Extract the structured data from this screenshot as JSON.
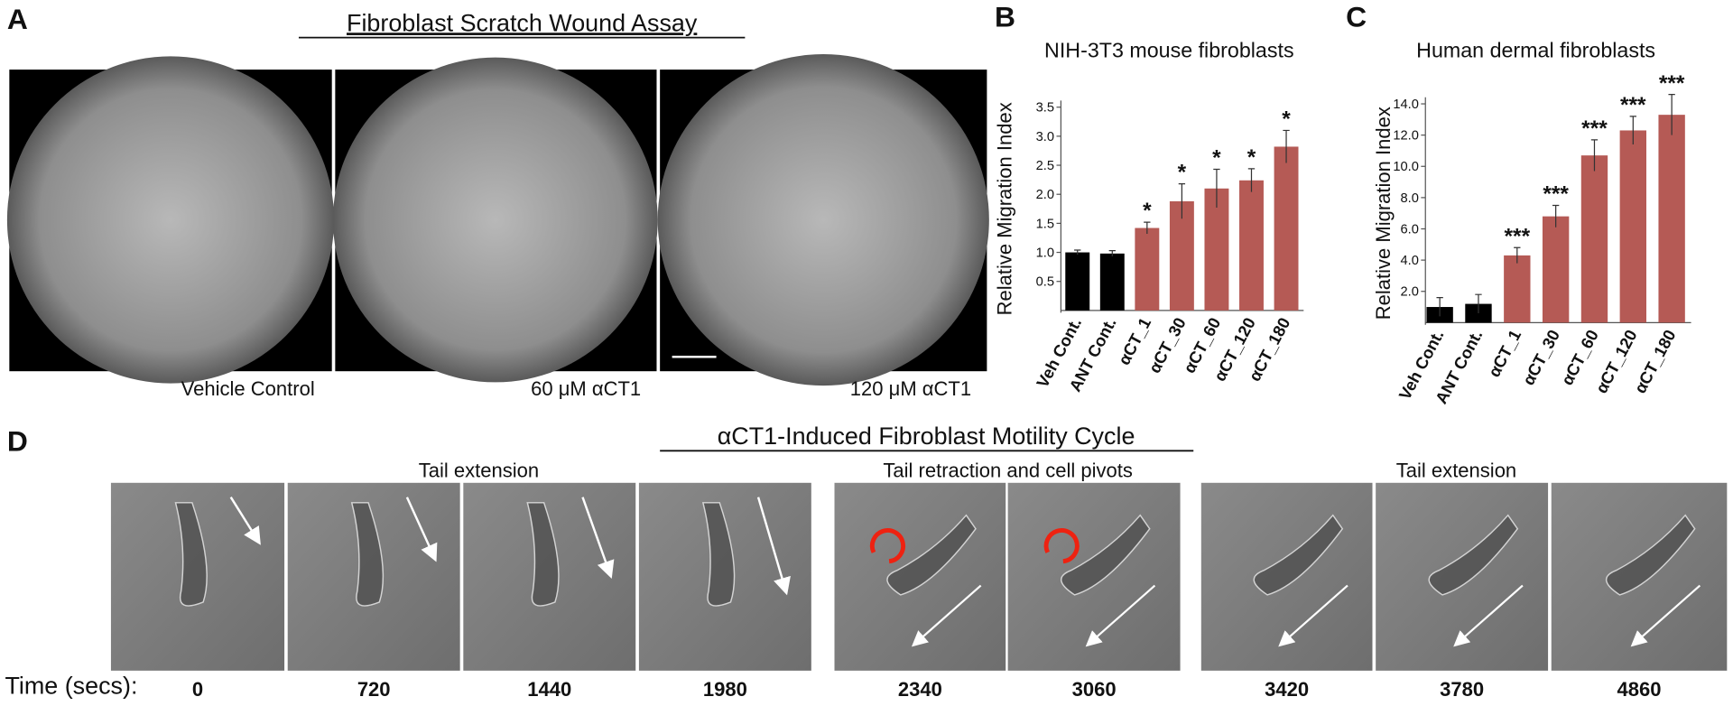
{
  "panel_A": {
    "letter": "A",
    "title": "Fibroblast Scratch Wound Assay",
    "captions": [
      "Vehicle Control",
      "60 μM αCT1",
      "120 μM αCT1"
    ]
  },
  "panel_D": {
    "letter": "D",
    "title": "αCT1-Induced Fibroblast Motility Cycle",
    "phases": [
      "Tail extension",
      "Tail retraction and cell pivots",
      "Tail extension"
    ],
    "time_label": "Time (secs):",
    "times": [
      0,
      720,
      1440,
      1980,
      2340,
      3060,
      3420,
      3780,
      4860
    ]
  },
  "chart_data": [
    {
      "type": "bar",
      "panel_label": "B",
      "title": "NIH-3T3 mouse fibroblasts",
      "y_label": "Relative Migration Index",
      "categories": [
        "Veh Cont.",
        "ANT Cont.",
        "αCT_1",
        "αCT_30",
        "αCT_60",
        "αCT_120",
        "αCT_180"
      ],
      "values": [
        1.0,
        0.98,
        1.42,
        1.88,
        2.1,
        2.24,
        2.82
      ],
      "errors": [
        0.04,
        0.05,
        0.1,
        0.3,
        0.33,
        0.2,
        0.28
      ],
      "colors": [
        "#000000",
        "#000000",
        "#b55a55",
        "#b55a55",
        "#b55a55",
        "#b55a55",
        "#b55a55"
      ],
      "significance": [
        null,
        null,
        "*",
        "*",
        "*",
        "*",
        "*"
      ],
      "ylim": [
        0,
        3.5
      ],
      "yticks": [
        0.5,
        {
          "value": 1,
          "label": "1.0"
        },
        1.5,
        {
          "value": 2,
          "label": "2.0"
        },
        2.5,
        {
          "value": 3,
          "label": "3.0"
        },
        3.5
      ]
    },
    {
      "type": "bar",
      "panel_label": "C",
      "title": "Human dermal fibroblasts",
      "y_label": "Relative Migration Index",
      "categories": [
        "Veh Cont.",
        "ANT Cont.",
        "αCT_1",
        "αCT_30",
        "αCT_60",
        "αCT_120",
        "αCT_180"
      ],
      "values": [
        1.0,
        1.2,
        4.3,
        6.8,
        10.7,
        12.3,
        13.3
      ],
      "errors": [
        0.6,
        0.6,
        0.5,
        0.7,
        1.0,
        0.9,
        1.3
      ],
      "colors": [
        "#000000",
        "#000000",
        "#b55a55",
        "#b55a55",
        "#b55a55",
        "#b55a55",
        "#b55a55"
      ],
      "significance": [
        null,
        null,
        "***",
        "***",
        "***",
        "***",
        "***"
      ],
      "ylim": [
        0,
        14
      ],
      "yticks": [
        {
          "value": 2,
          "label": "2.0"
        },
        {
          "value": 4,
          "label": "4.0"
        },
        {
          "value": 6,
          "label": "6.0"
        },
        {
          "value": 8,
          "label": "8.0"
        },
        {
          "value": 10,
          "label": "10.0"
        },
        {
          "value": 12,
          "label": "12.0"
        },
        {
          "value": 14,
          "label": "14.0"
        }
      ]
    }
  ]
}
